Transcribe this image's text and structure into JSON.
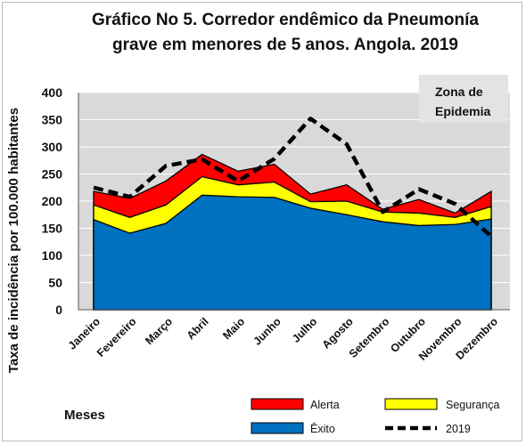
{
  "chart_data": {
    "type": "area",
    "title_line1": "Gráfico No 5. Corredor endêmico da Pneumonía",
    "title_line2": "grave em menores de 5 anos. Angola. 2019",
    "xlabel": "Meses",
    "ylabel": "Taxa de incidência por 100.000 habitantes",
    "ylim": [
      0,
      400
    ],
    "yticks": [
      "0",
      "50",
      "100",
      "150",
      "200",
      "250",
      "300",
      "350",
      "400"
    ],
    "categories": [
      "Janeiro",
      "Fevereiro",
      "Março",
      "Abril",
      "Maio",
      "Junho",
      "Julho",
      "Agosto",
      "Setembro",
      "Outubro",
      "Novembro",
      "Dezembro"
    ],
    "annotation": [
      "Zona de",
      "Epidemia"
    ],
    "grid": true,
    "legend_position": "bottom",
    "series": [
      {
        "name": "Alerta",
        "kind": "area",
        "color": "#ff0000",
        "values": [
          218,
          205,
          237,
          286,
          255,
          268,
          213,
          230,
          185,
          203,
          178,
          218
        ]
      },
      {
        "name": "Segurança",
        "kind": "area",
        "color": "#ffff00",
        "values": [
          193,
          170,
          193,
          245,
          230,
          235,
          199,
          200,
          180,
          178,
          170,
          190
        ]
      },
      {
        "name": "Êxito",
        "kind": "area",
        "color": "#0070c0",
        "values": [
          166,
          141,
          159,
          211,
          208,
          207,
          187,
          175,
          162,
          155,
          157,
          167
        ]
      },
      {
        "name": "2019",
        "kind": "line",
        "color": "#000000",
        "values": [
          225,
          208,
          265,
          277,
          237,
          278,
          352,
          305,
          180,
          222,
          195,
          135
        ]
      }
    ]
  }
}
